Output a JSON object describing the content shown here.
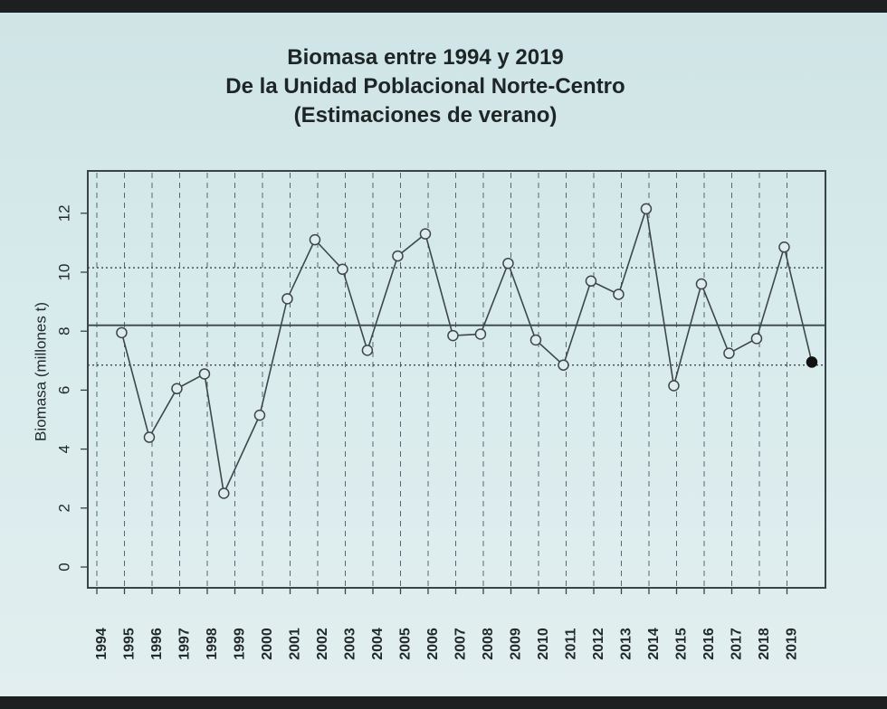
{
  "title_lines": [
    "Biomasa entre 1994 y 2019",
    "De la Unidad Poblacional Norte-Centro",
    "(Estimaciones de verano)"
  ],
  "chart_data": {
    "type": "line",
    "ylabel": "Biomasa (millones t)",
    "ylim": [
      0,
      13
    ],
    "yticks": [
      0,
      2,
      4,
      6,
      8,
      10,
      12
    ],
    "categories": [
      "1994",
      "1995",
      "1996",
      "1997",
      "1998",
      "1999",
      "2000",
      "2001",
      "2002",
      "2003",
      "2004",
      "2005",
      "2006",
      "2007",
      "2008",
      "2009",
      "2010",
      "2011",
      "2012",
      "2013",
      "2014",
      "2015",
      "2016",
      "2017",
      "2018",
      "2019"
    ],
    "series": [
      {
        "values": [
          {
            "x": 1994.9,
            "y": 7.95
          },
          {
            "x": 1995.9,
            "y": 4.4
          },
          {
            "x": 1996.9,
            "y": 6.05
          },
          {
            "x": 1997.9,
            "y": 6.55
          },
          {
            "x": 1998.6,
            "y": 2.5
          },
          {
            "x": 1999.9,
            "y": 5.15
          },
          {
            "x": 2000.9,
            "y": 9.1
          },
          {
            "x": 2001.9,
            "y": 11.1
          },
          {
            "x": 2002.9,
            "y": 10.1
          },
          {
            "x": 2003.8,
            "y": 7.35
          },
          {
            "x": 2004.9,
            "y": 10.55
          },
          {
            "x": 2005.9,
            "y": 11.3
          },
          {
            "x": 2006.9,
            "y": 7.85
          },
          {
            "x": 2007.9,
            "y": 7.9
          },
          {
            "x": 2008.9,
            "y": 10.3
          },
          {
            "x": 2009.9,
            "y": 7.7
          },
          {
            "x": 2010.9,
            "y": 6.85
          },
          {
            "x": 2011.9,
            "y": 9.7
          },
          {
            "x": 2012.9,
            "y": 9.25
          },
          {
            "x": 2013.9,
            "y": 12.15
          },
          {
            "x": 2014.9,
            "y": 6.15
          },
          {
            "x": 2015.9,
            "y": 9.6
          },
          {
            "x": 2016.9,
            "y": 7.25
          },
          {
            "x": 2017.9,
            "y": 7.75
          },
          {
            "x": 2018.9,
            "y": 10.85
          },
          {
            "x": 2019.9,
            "y": 6.95
          }
        ],
        "last_point_filled": true
      }
    ],
    "reference_lines": [
      {
        "y": 8.2,
        "style": "solid"
      },
      {
        "y": 10.15,
        "style": "dotted"
      },
      {
        "y": 6.85,
        "style": "dotted"
      }
    ],
    "vertical_grid": "dashed at each year",
    "colors": {
      "line": "#3d4749",
      "frame": "#3a4447",
      "filled_point": "#111111"
    }
  }
}
